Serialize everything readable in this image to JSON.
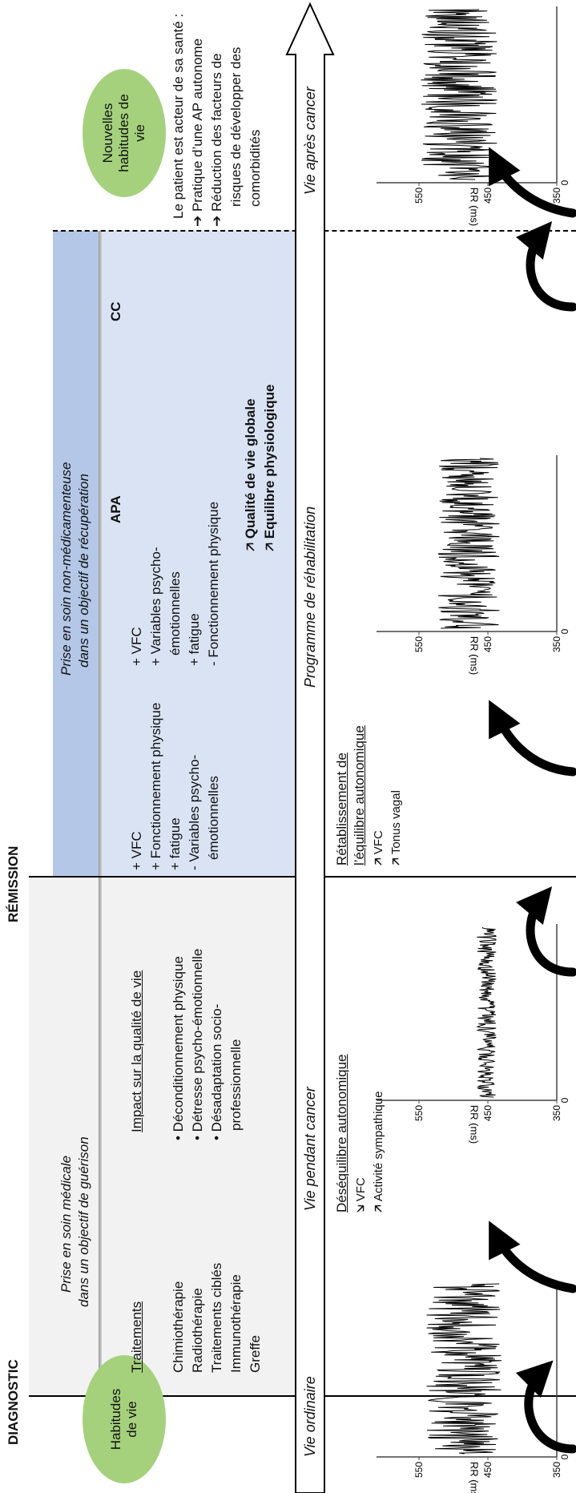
{
  "top_labels": {
    "diagnostic": "DIAGNOSTIC",
    "remission": "RÉMISSION"
  },
  "bubbles": {
    "before": "Habitudes de vie",
    "after": "Nouvelles habitudes de vie"
  },
  "before_phase": {
    "timeline": "Vie ordinaire"
  },
  "medical_phase": {
    "title_line1": "Prise en soin médicale",
    "title_line2": "dans un objectif de guérison",
    "treatments_heading": "Traitements",
    "treatments": [
      "Chimiothérapie",
      "Radiothérapie",
      "Traitements ciblés",
      "Immunothérapie",
      "Greffe"
    ],
    "impact_heading": "Impact sur la qualité de vie",
    "impacts": [
      "• Déconditionnement physique",
      "• Détresse psycho-émotionnelle",
      "• Désadaptation socio-",
      "professionnelle"
    ],
    "timeline": "Vie pendant cancer",
    "autonomic_heading": "Déséquilibre autonomique",
    "autonomic_items": [
      {
        "arrow": "down-arrow-icon",
        "label": "VFC"
      },
      {
        "arrow": "up-arrow-icon",
        "label": "Activité sympathique"
      }
    ]
  },
  "rehab_phase": {
    "title_line1": "Prise en soin non-médicamenteuse",
    "title_line2": "dans un objectif de récupération",
    "apa_heading": "APA",
    "apa_items": [
      "+ VFC",
      "+ Fonctionnement physique",
      "+ fatigue",
      "- Variables psycho-",
      "émotionnelles"
    ],
    "cc_heading": "CC",
    "cc_items": [
      "+ VFC",
      "+ Variables psycho-",
      "émotionnelles",
      "+ fatigue",
      "- Fonctionnement physique"
    ],
    "outcomes": [
      "Qualité de vie globale",
      "Equilibre physiologique"
    ],
    "timeline": "Programme de réhabilitation",
    "autonomic_heading_line1": "Rétablissement de",
    "autonomic_heading_line2": "l’équilibre autonomique",
    "autonomic_items": [
      {
        "arrow": "up-arrow-icon",
        "label": "VFC"
      },
      {
        "arrow": "up-arrow-icon",
        "label": "Tonus vagal"
      }
    ]
  },
  "after_phase": {
    "intro": "Le patient est acteur de sa santé :",
    "items": [
      {
        "arrow": "right-arrow-icon",
        "lines": [
          "Pratique d’une AP autonome"
        ]
      },
      {
        "arrow": "right-arrow-icon",
        "lines": [
          "Réduction des facteurs de",
          "risques de développer des",
          "comorbidités"
        ]
      }
    ],
    "timeline": "Vie après cancer"
  },
  "rr_chart": {
    "ylabel": "RR (ms)",
    "ticks": [
      "550",
      "450",
      "350"
    ],
    "x_tick": "0"
  },
  "chart_data": [
    {
      "type": "line",
      "phase": "Vie ordinaire",
      "ylabel": "RR (ms)",
      "ylim": [
        350,
        600
      ],
      "y_ticks": [
        550,
        450,
        350
      ],
      "x_ticks": [
        0
      ],
      "mean": 485,
      "spread": 55
    },
    {
      "type": "line",
      "phase": "Vie pendant cancer",
      "ylabel": "RR (ms)",
      "ylim": [
        350,
        600
      ],
      "y_ticks": [
        550,
        450,
        350
      ],
      "x_ticks": [
        0
      ],
      "mean": 452,
      "spread": 14
    },
    {
      "type": "line",
      "phase": "Programme de réhabilitation",
      "ylabel": "RR (ms)",
      "ylim": [
        350,
        600
      ],
      "y_ticks": [
        550,
        450,
        350
      ],
      "x_ticks": [
        0
      ],
      "mean": 478,
      "spread": 45
    },
    {
      "type": "line",
      "phase": "Vie après cancer",
      "ylabel": "RR (ms)",
      "ylim": [
        350,
        600
      ],
      "y_ticks": [
        550,
        450,
        350
      ],
      "x_ticks": [
        0
      ],
      "mean": 492,
      "spread": 56
    }
  ],
  "colors": {
    "grey_band": "#f2f2f2",
    "blue_band": "#dae3f3",
    "blue_header": "#b4c7e7",
    "bubble": "#a5d17d"
  }
}
